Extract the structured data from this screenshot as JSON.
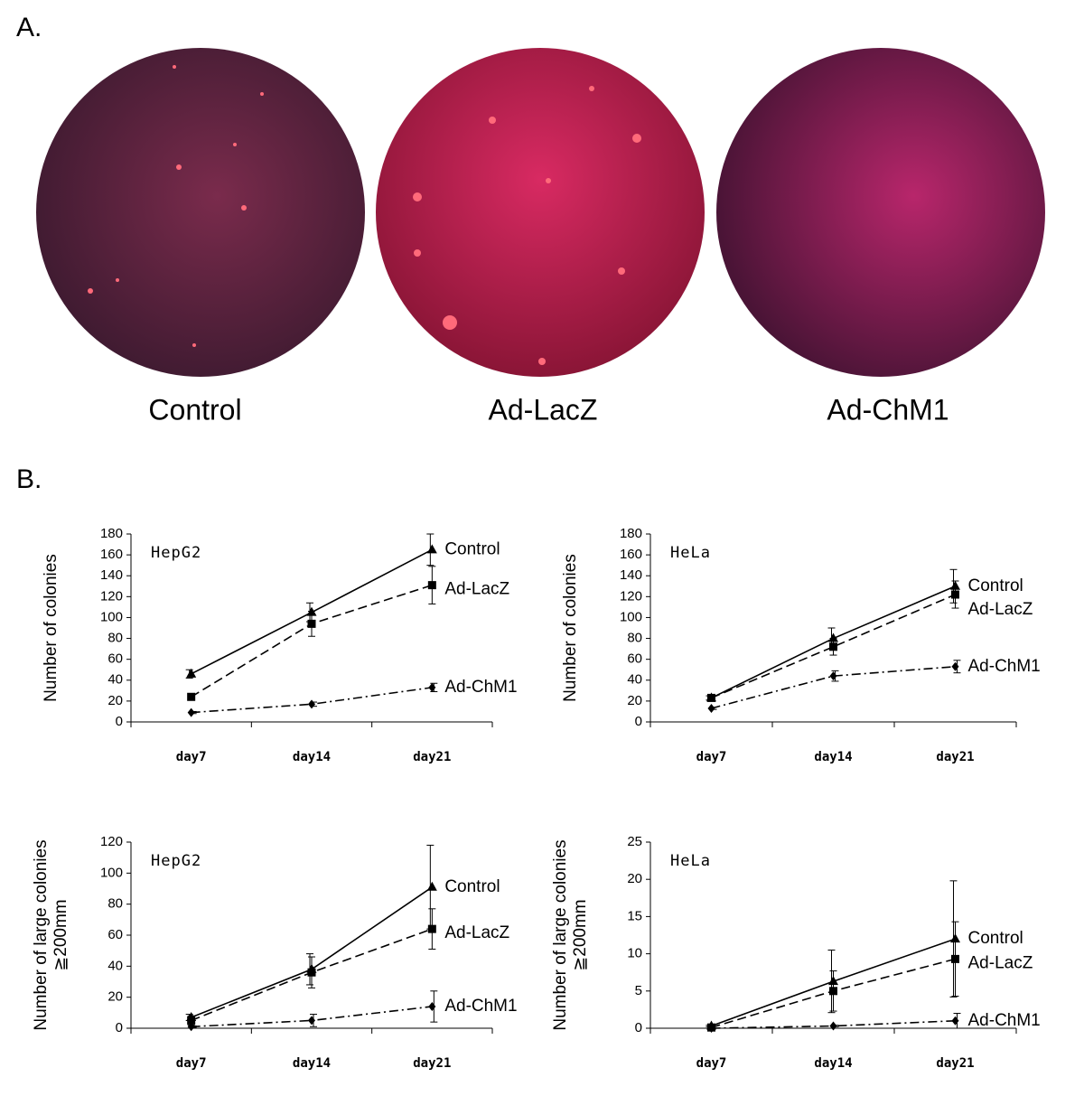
{
  "panel_a": {
    "label": "A.",
    "images": [
      "Control",
      "Ad-LacZ",
      "Ad-ChM1"
    ]
  },
  "panel_b": {
    "label": "B."
  },
  "chart_data": [
    {
      "type": "line",
      "title": "HepG2",
      "y_label": [
        "Number of colonies"
      ],
      "categories": [
        "day7",
        "day14",
        "day21"
      ],
      "ylim": [
        0,
        180
      ],
      "yticks": [
        0,
        20,
        40,
        60,
        80,
        100,
        120,
        140,
        160,
        180
      ],
      "series": [
        {
          "name": "Control",
          "color": "#000000",
          "dash": "solid",
          "marker": "triangle",
          "values": [
            46,
            105,
            165
          ],
          "errors": [
            4,
            9,
            15
          ]
        },
        {
          "name": "Ad-LacZ",
          "color": "#000000",
          "dash": "dashed",
          "marker": "square",
          "values": [
            24,
            94,
            131
          ],
          "errors": [
            2,
            12,
            18
          ]
        },
        {
          "name": "Ad-ChM1",
          "color": "#000000",
          "dash": "dashdot",
          "marker": "diamond",
          "values": [
            9,
            17,
            33
          ],
          "errors": [
            1,
            2,
            4
          ]
        }
      ]
    },
    {
      "type": "line",
      "title": "HeLa",
      "y_label": [
        "Number of colonies"
      ],
      "categories": [
        "day7",
        "day14",
        "day21"
      ],
      "ylim": [
        0,
        180
      ],
      "yticks": [
        0,
        20,
        40,
        60,
        80,
        100,
        120,
        140,
        160,
        180
      ],
      "series": [
        {
          "name": "Control",
          "color": "#000000",
          "dash": "solid",
          "marker": "triangle",
          "values": [
            23,
            80,
            130
          ],
          "errors": [
            2,
            10,
            16
          ]
        },
        {
          "name": "Ad-LacZ",
          "color": "#000000",
          "dash": "dashed",
          "marker": "square",
          "values": [
            23,
            72,
            122
          ],
          "errors": [
            2,
            8,
            13
          ]
        },
        {
          "name": "Ad-ChM1",
          "color": "#000000",
          "dash": "dashdot",
          "marker": "diamond",
          "values": [
            13,
            44,
            53
          ],
          "errors": [
            1,
            5,
            6
          ]
        }
      ]
    },
    {
      "type": "line",
      "title": "HepG2",
      "y_label": [
        "Number of large colonies",
        "≧200mm"
      ],
      "categories": [
        "day7",
        "day14",
        "day21"
      ],
      "ylim": [
        0,
        120
      ],
      "yticks": [
        0,
        20,
        40,
        60,
        80,
        100,
        120
      ],
      "series": [
        {
          "name": "Control",
          "color": "#000000",
          "dash": "solid",
          "marker": "triangle",
          "values": [
            7,
            38,
            91
          ],
          "errors": [
            2,
            10,
            27
          ]
        },
        {
          "name": "Ad-LacZ",
          "color": "#000000",
          "dash": "dashed",
          "marker": "square",
          "values": [
            5,
            36,
            64
          ],
          "errors": [
            3,
            10,
            13
          ]
        },
        {
          "name": "Ad-ChM1",
          "color": "#000000",
          "dash": "dashdot",
          "marker": "diamond",
          "values": [
            1,
            5,
            14
          ],
          "errors": [
            0.5,
            4,
            10
          ]
        }
      ]
    },
    {
      "type": "line",
      "title": "HeLa",
      "y_label": [
        "Number of large colonies",
        "≧200mm"
      ],
      "categories": [
        "day7",
        "day14",
        "day21"
      ],
      "ylim": [
        0,
        25
      ],
      "yticks": [
        0,
        5,
        10,
        15,
        20,
        25
      ],
      "series": [
        {
          "name": "Control",
          "color": "#000000",
          "dash": "solid",
          "marker": "triangle",
          "values": [
            0.3,
            6.3,
            12
          ],
          "errors": [
            0.1,
            4.2,
            7.8
          ]
        },
        {
          "name": "Ad-LacZ",
          "color": "#000000",
          "dash": "dashed",
          "marker": "square",
          "values": [
            0.1,
            5,
            9.3
          ],
          "errors": [
            0.1,
            2.7,
            5
          ]
        },
        {
          "name": "Ad-ChM1",
          "color": "#000000",
          "dash": "dashdot",
          "marker": "diamond",
          "values": [
            0,
            0.3,
            1
          ],
          "errors": [
            0,
            0.1,
            1
          ]
        }
      ]
    }
  ]
}
